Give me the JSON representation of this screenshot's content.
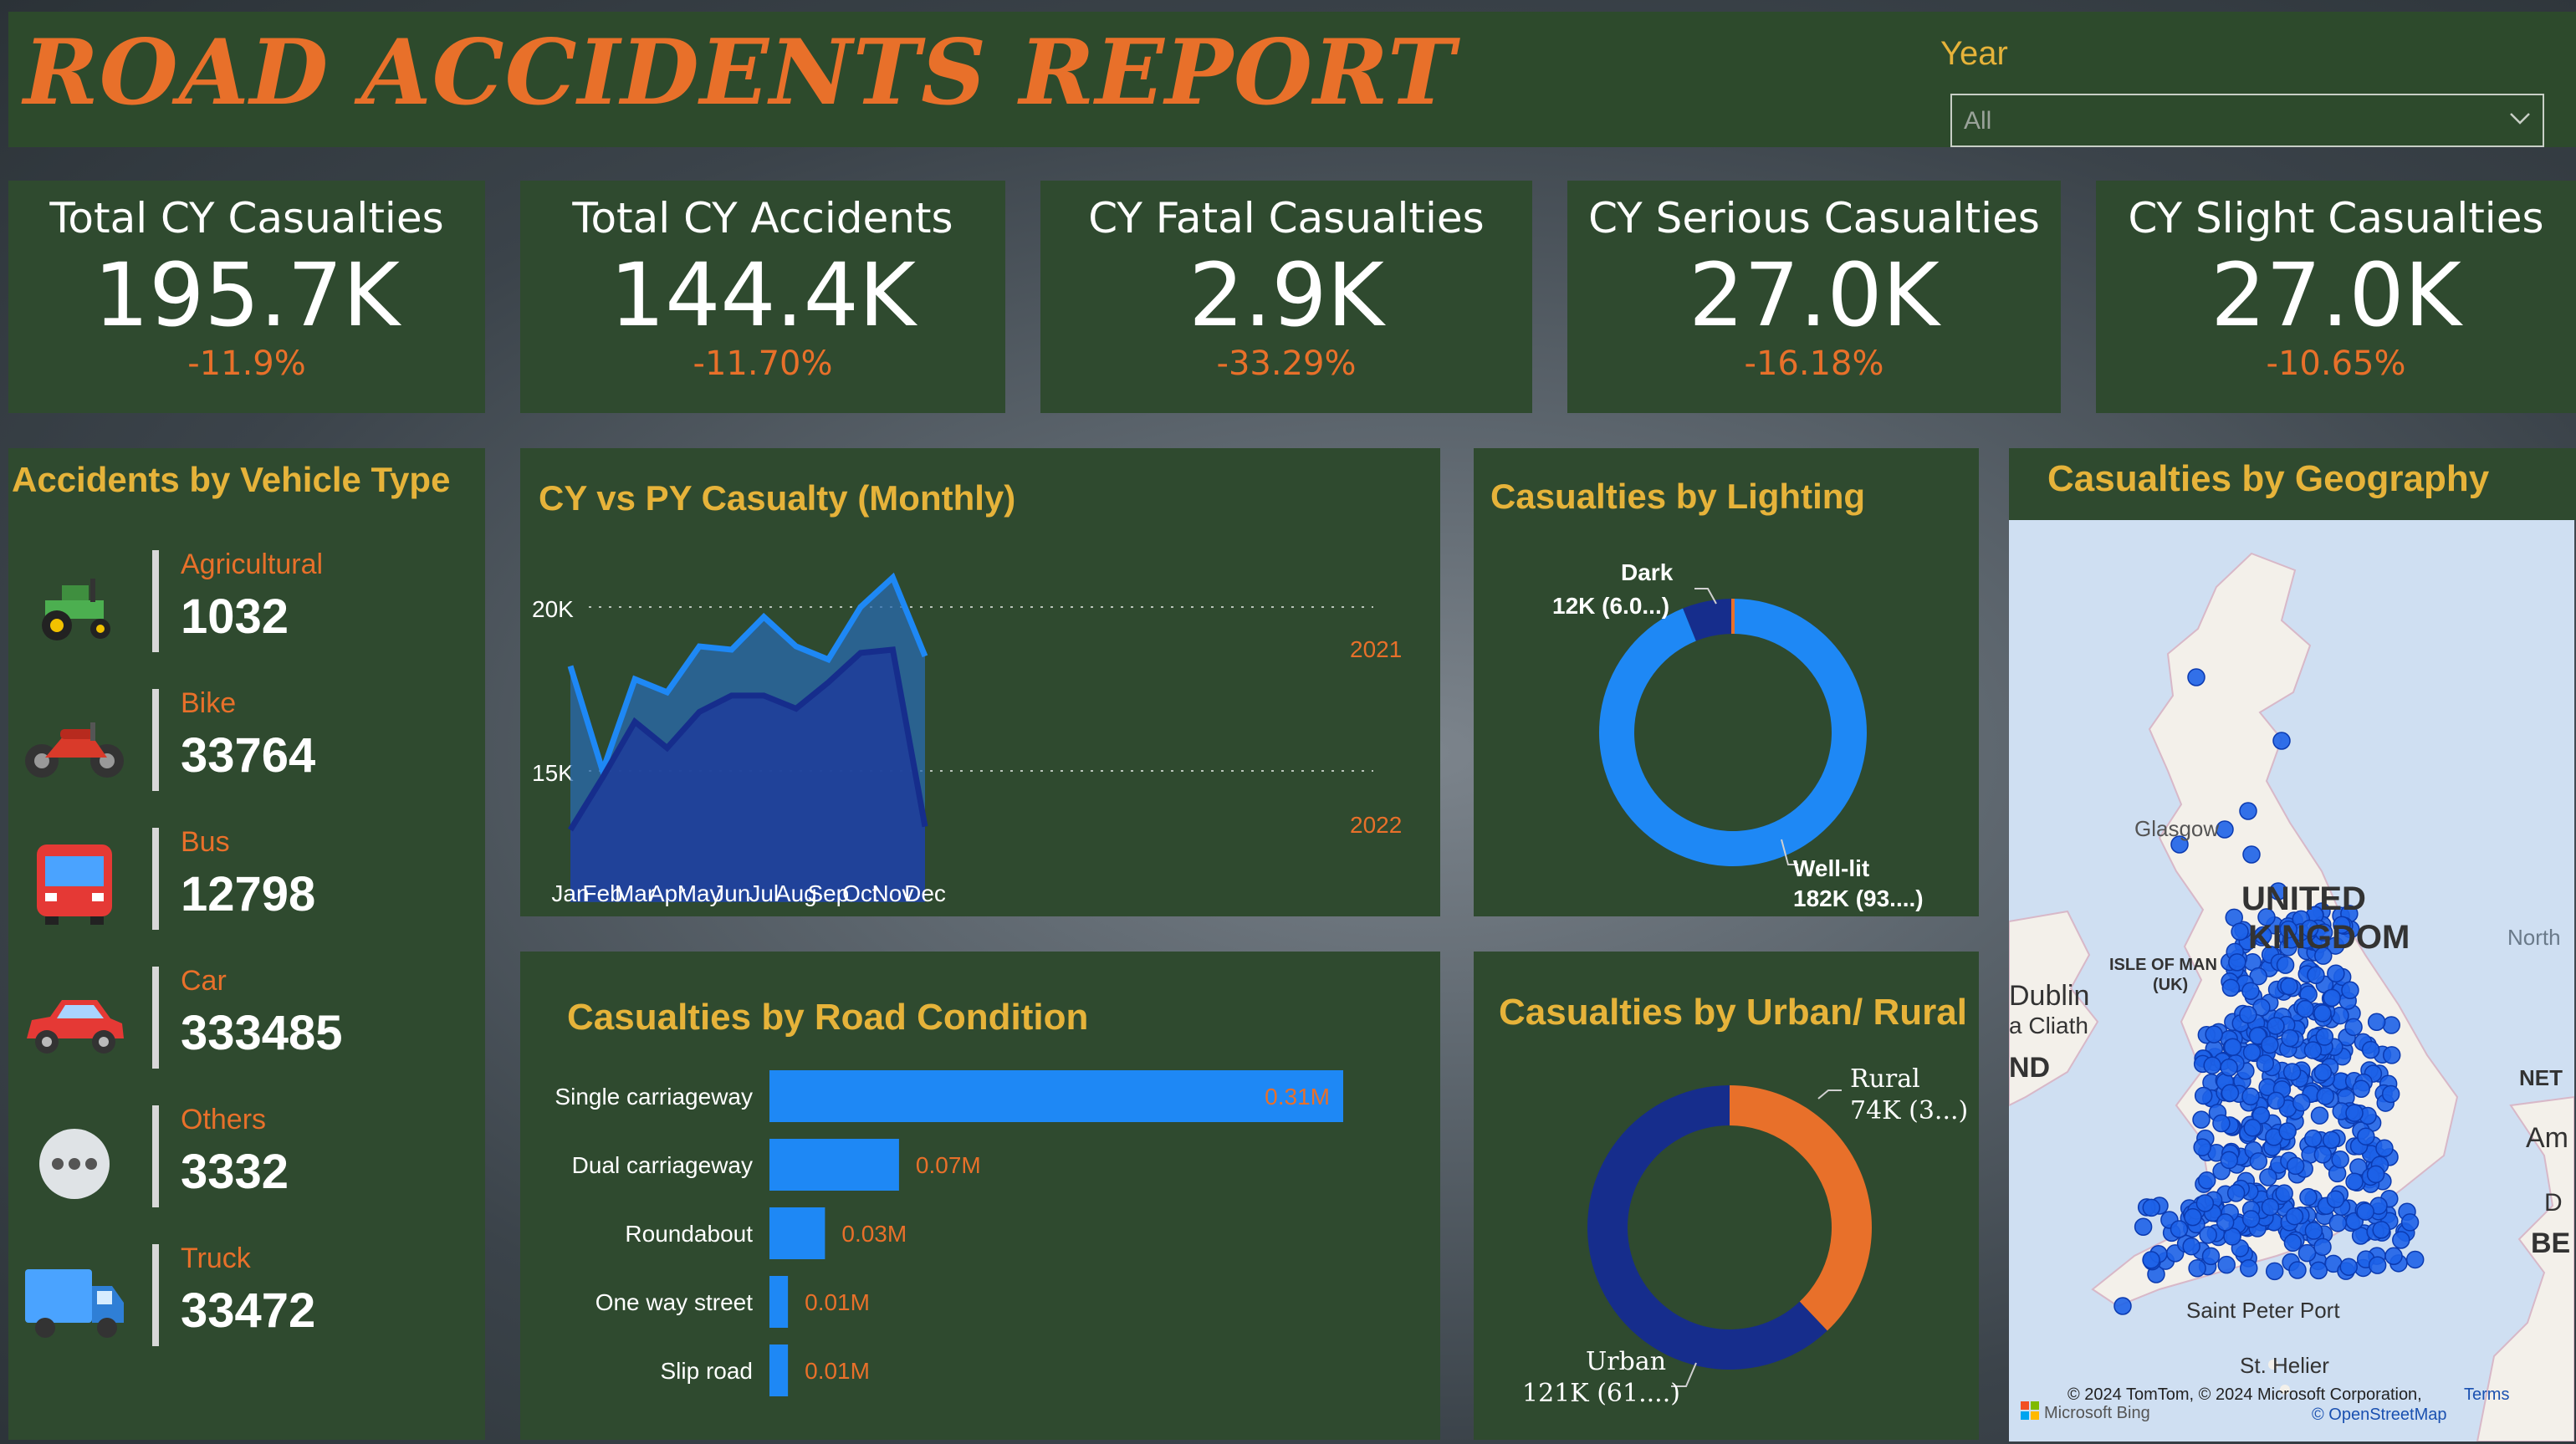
{
  "header": {
    "title": "ROAD ACCIDENTS REPORT",
    "year_label": "Year",
    "year_value": "All"
  },
  "kpis": [
    {
      "title": "Total CY Casualties",
      "value": "195.7K",
      "change": "-11.9%"
    },
    {
      "title": "Total CY Accidents",
      "value": "144.4K",
      "change": "-11.70%"
    },
    {
      "title": "CY Fatal Casualties",
      "value": "2.9K",
      "change": "-33.29%"
    },
    {
      "title": "CY Serious Casualties",
      "value": "27.0K",
      "change": "-16.18%"
    },
    {
      "title": "CY Slight Casualties",
      "value": "27.0K",
      "change": "-10.65%"
    }
  ],
  "vehicle": {
    "title": "Accidents by Vehicle Type",
    "items": [
      {
        "name": "Agricultural",
        "value": "1032",
        "icon": "tractor-icon"
      },
      {
        "name": "Bike",
        "value": "33764",
        "icon": "motorbike-icon"
      },
      {
        "name": "Bus",
        "value": "12798",
        "icon": "bus-icon"
      },
      {
        "name": "Car",
        "value": "333485",
        "icon": "car-icon"
      },
      {
        "name": "Others",
        "value": "3332",
        "icon": "more-icon"
      },
      {
        "name": "Truck",
        "value": "33472",
        "icon": "truck-icon"
      }
    ]
  },
  "monthly": {
    "title": "CY vs PY Casualty (Monthly)",
    "ytick_20k": "20K",
    "ytick_15k": "15K",
    "label_2021": "2021",
    "label_2022": "2022"
  },
  "lighting": {
    "title": "Casualties by Lighting",
    "dark_label": "Dark",
    "dark_value": "12K (6.0...)",
    "welllit_label": "Well-lit",
    "welllit_value": "182K (93....)"
  },
  "road": {
    "title": "Casualties by Road Condition"
  },
  "urban": {
    "title": "Casualties by Urban/ Rural",
    "rural_label": "Rural",
    "rural_value": "74K (3...)",
    "urban_label": "Urban",
    "urban_value": "121K (61....)"
  },
  "geo": {
    "title": "Casualties by Geography",
    "labels": {
      "glasgow": "Glasgow",
      "united": "UNITED",
      "kingdom": "KINGDOM",
      "isle": "ISLE OF MAN",
      "uk": "(UK)",
      "dublin": "Dublin",
      "cliath": "a Cliath",
      "nd": "ND",
      "north": "North",
      "net": "NET",
      "am": "Am",
      "be": "BE",
      "d": "D",
      "saint_peter": "Saint Peter Port",
      "st_helier": "St. Helier",
      "copyright": "© 2024 TomTom, © 2024 Microsoft Corporation,",
      "terms": "Terms",
      "osm": "© OpenStreetMap",
      "bing": "Microsoft Bing"
    }
  },
  "colors": {
    "panel": "#2f4a2f",
    "accent_orange": "#e8702a",
    "accent_yellow": "#e6b33a",
    "bar_blue": "#1e88f5",
    "navy": "#162d8c"
  },
  "chart_data": [
    {
      "type": "area",
      "title": "CY vs PY Casualty (Monthly)",
      "categories": [
        "Jan",
        "Feb",
        "Mar",
        "Apr",
        "May",
        "Jun",
        "Jul",
        "Aug",
        "Sep",
        "Oct",
        "Nov",
        "Dec"
      ],
      "series": [
        {
          "name": "2021",
          "values": [
            18200,
            15000,
            17800,
            17400,
            18800,
            18700,
            19700,
            18800,
            18400,
            20000,
            20900,
            18500
          ]
        },
        {
          "name": "2022",
          "values": [
            13200,
            14800,
            16500,
            15700,
            16800,
            17300,
            17300,
            16900,
            17700,
            18600,
            18700,
            13300
          ]
        }
      ],
      "yticks": [
        "15K",
        "20K"
      ],
      "ylim": [
        11000,
        22000
      ],
      "legend": "right"
    },
    {
      "type": "pie",
      "title": "Casualties by Lighting",
      "labels": [
        "Well-lit",
        "Dark"
      ],
      "values": [
        182,
        12
      ],
      "value_labels": [
        "182K (93....)",
        "12K (6.0...)"
      ],
      "colors": [
        "#1e88f5",
        "#162d8c"
      ]
    },
    {
      "type": "bar",
      "title": "Casualties by Road Condition",
      "categories": [
        "Single carriageway",
        "Dual carriageway",
        "Roundabout",
        "One way street",
        "Slip road"
      ],
      "values": [
        0.31,
        0.07,
        0.03,
        0.01,
        0.01
      ],
      "value_labels": [
        "0.31M",
        "0.07M",
        "0.03M",
        "0.01M",
        "0.01M"
      ],
      "orientation": "horizontal"
    },
    {
      "type": "pie",
      "title": "Casualties by Urban/ Rural",
      "labels": [
        "Rural",
        "Urban"
      ],
      "values": [
        74,
        121
      ],
      "value_labels": [
        "74K (3...)",
        "121K (61....)"
      ],
      "colors": [
        "#e8702a",
        "#162d8c"
      ]
    }
  ]
}
